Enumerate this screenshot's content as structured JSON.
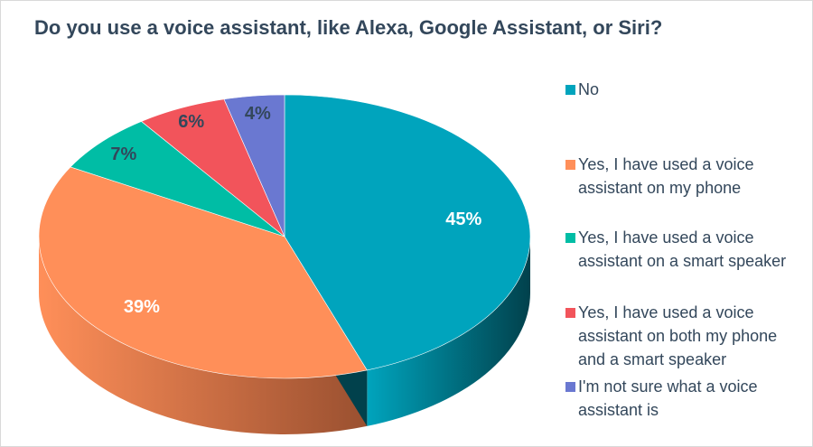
{
  "chart_data": {
    "type": "pie",
    "style": "3d",
    "title": "Do you use a voice assistant, like Alexa, Google Assistant, or Siri?",
    "slices": [
      {
        "label": "No",
        "value": 45,
        "display": "45%",
        "color": "#00a4bd",
        "side_color": "#01414c"
      },
      {
        "label": "Yes, I have used a voice assistant on my phone",
        "value": 39,
        "display": "39%",
        "color": "#ff8f59",
        "side_color": "#9a5030"
      },
      {
        "label": "Yes, I have used a voice assistant on a smart speaker",
        "value": 7,
        "display": "7%",
        "color": "#00bda5",
        "side_color": "#006a5c"
      },
      {
        "label": "Yes, I have used a voice assistant on both my phone and a smart speaker",
        "value": 6,
        "display": "6%",
        "color": "#f2545b",
        "side_color": "#8f2a2f"
      },
      {
        "label": "I'm not sure what a voice assistant is",
        "value": 4,
        "display": "4%",
        "color": "#6a78d1",
        "side_color": "#3a447e"
      }
    ],
    "legend_position": "right"
  }
}
